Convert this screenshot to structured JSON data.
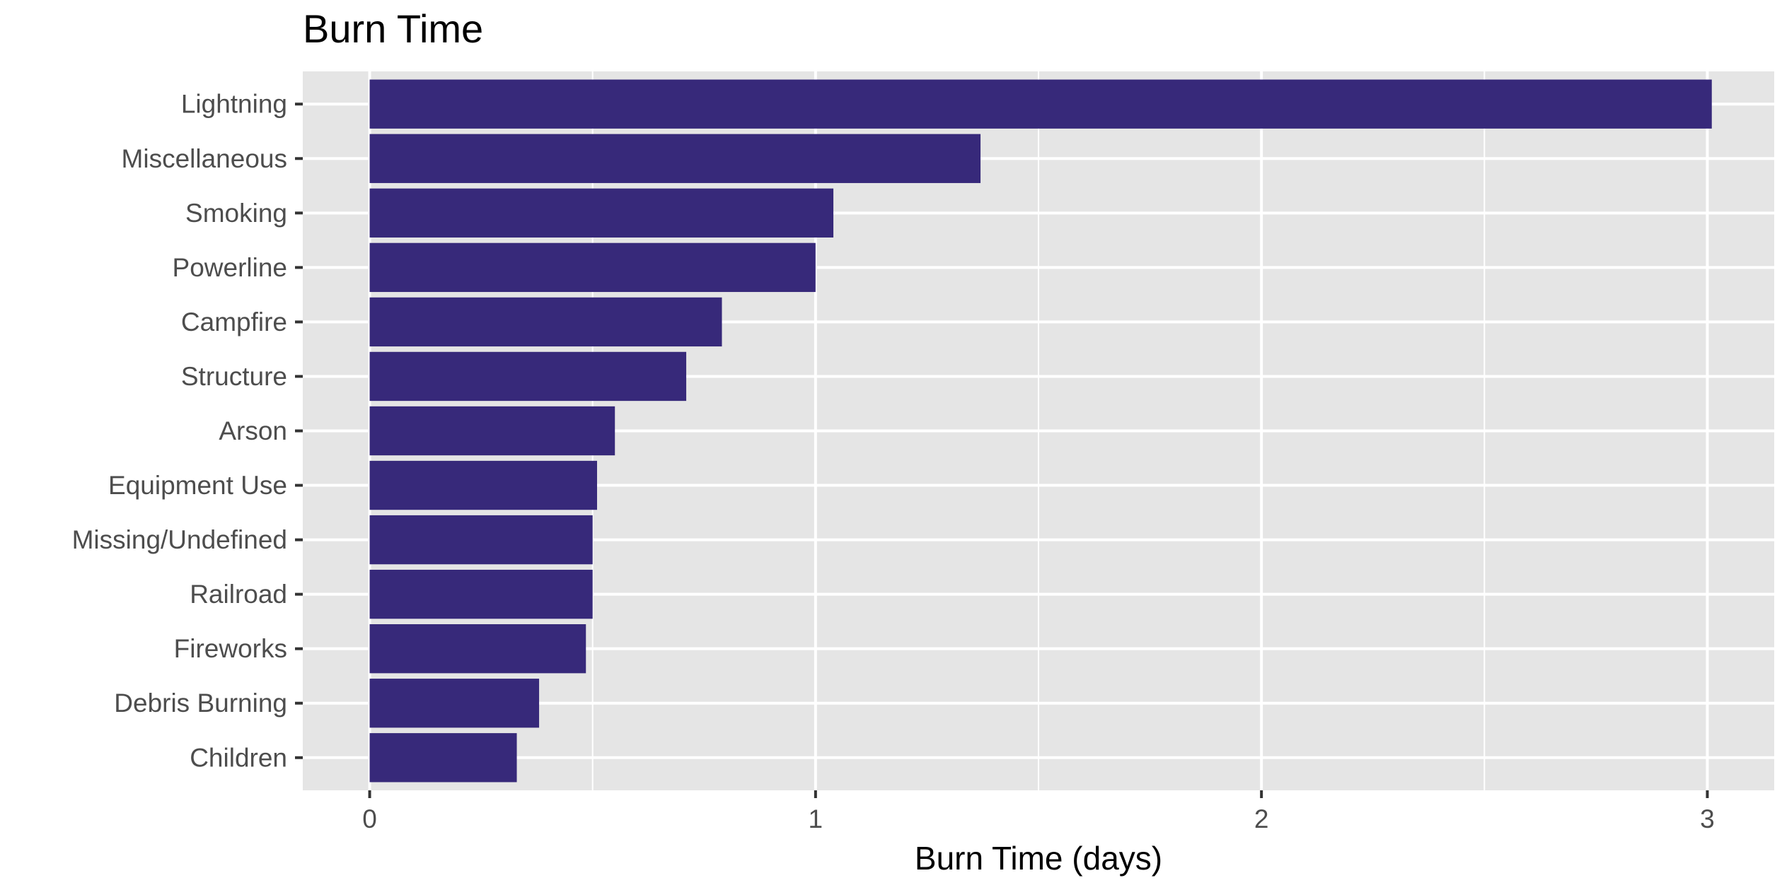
{
  "chart_data": {
    "type": "bar",
    "orientation": "horizontal",
    "title": "Burn Time",
    "xlabel": "Burn Time (days)",
    "ylabel": "",
    "categories": [
      "Lightning",
      "Miscellaneous",
      "Smoking",
      "Powerline",
      "Campfire",
      "Structure",
      "Arson",
      "Equipment Use",
      "Missing/Undefined",
      "Railroad",
      "Fireworks",
      "Debris Burning",
      "Children"
    ],
    "values": [
      3.01,
      1.37,
      1.04,
      1.0,
      0.79,
      0.71,
      0.55,
      0.51,
      0.5,
      0.5,
      0.485,
      0.38,
      0.33
    ],
    "xlim": [
      -0.15,
      3.15
    ],
    "xticks": [
      0,
      1,
      2,
      3
    ],
    "xtick_labels": [
      "0",
      "1",
      "2",
      "3"
    ],
    "grid": true,
    "legend": "none",
    "colors": {
      "bar": "#37297A",
      "panel_background": "#E5E5E5",
      "grid": "#FFFFFF",
      "tick_label": "#4D4D4D",
      "tick_mark": "#333333"
    }
  }
}
